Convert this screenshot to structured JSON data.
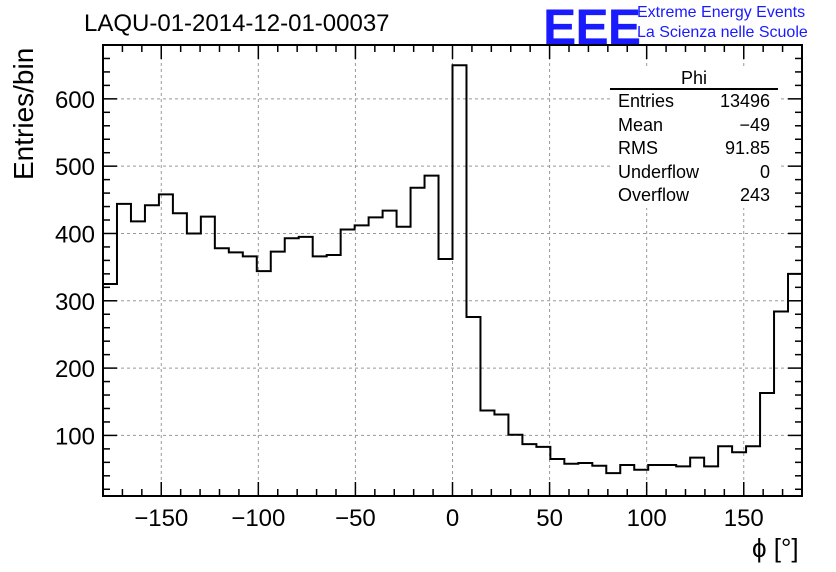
{
  "title": "LAQU-01-2014-12-01-00037",
  "logo": {
    "mark": "EEE",
    "line1": "Extreme Energy Events",
    "line2": "La Scienza nelle Scuole",
    "color": "#1a1aff"
  },
  "stats": {
    "name": "Phi",
    "rows": [
      {
        "label": "Entries",
        "value": "13496"
      },
      {
        "label": "Mean",
        "value": "−49"
      },
      {
        "label": "RMS",
        "value": "91.85"
      },
      {
        "label": "Underflow",
        "value": "0"
      },
      {
        "label": "Overflow",
        "value": "243"
      }
    ]
  },
  "chart_data": {
    "type": "bar",
    "style": "step-histogram",
    "xlabel": "ϕ [°]",
    "ylabel": "Entries/bin",
    "xlim": [
      -180,
      180
    ],
    "ylim": [
      10,
      680
    ],
    "bin_width": 7.2,
    "xticks": [
      -150,
      -100,
      -50,
      0,
      50,
      100,
      150
    ],
    "xtick_labels": [
      "−150",
      "−100",
      "−50",
      "0",
      "50",
      "100",
      "150"
    ],
    "yticks": [
      100,
      200,
      300,
      400,
      500,
      600
    ],
    "ytick_labels": [
      "100",
      "200",
      "300",
      "400",
      "500",
      "600"
    ],
    "grid": true,
    "values": [
      325,
      444,
      418,
      442,
      458,
      430,
      400,
      425,
      378,
      372,
      366,
      344,
      373,
      393,
      395,
      366,
      368,
      406,
      412,
      424,
      434,
      410,
      468,
      486,
      362,
      650,
      276,
      137,
      131,
      101,
      87,
      83,
      65,
      58,
      59,
      55,
      44,
      56,
      49,
      56,
      56,
      54,
      67,
      54,
      84,
      75,
      84,
      163,
      284,
      340
    ]
  }
}
